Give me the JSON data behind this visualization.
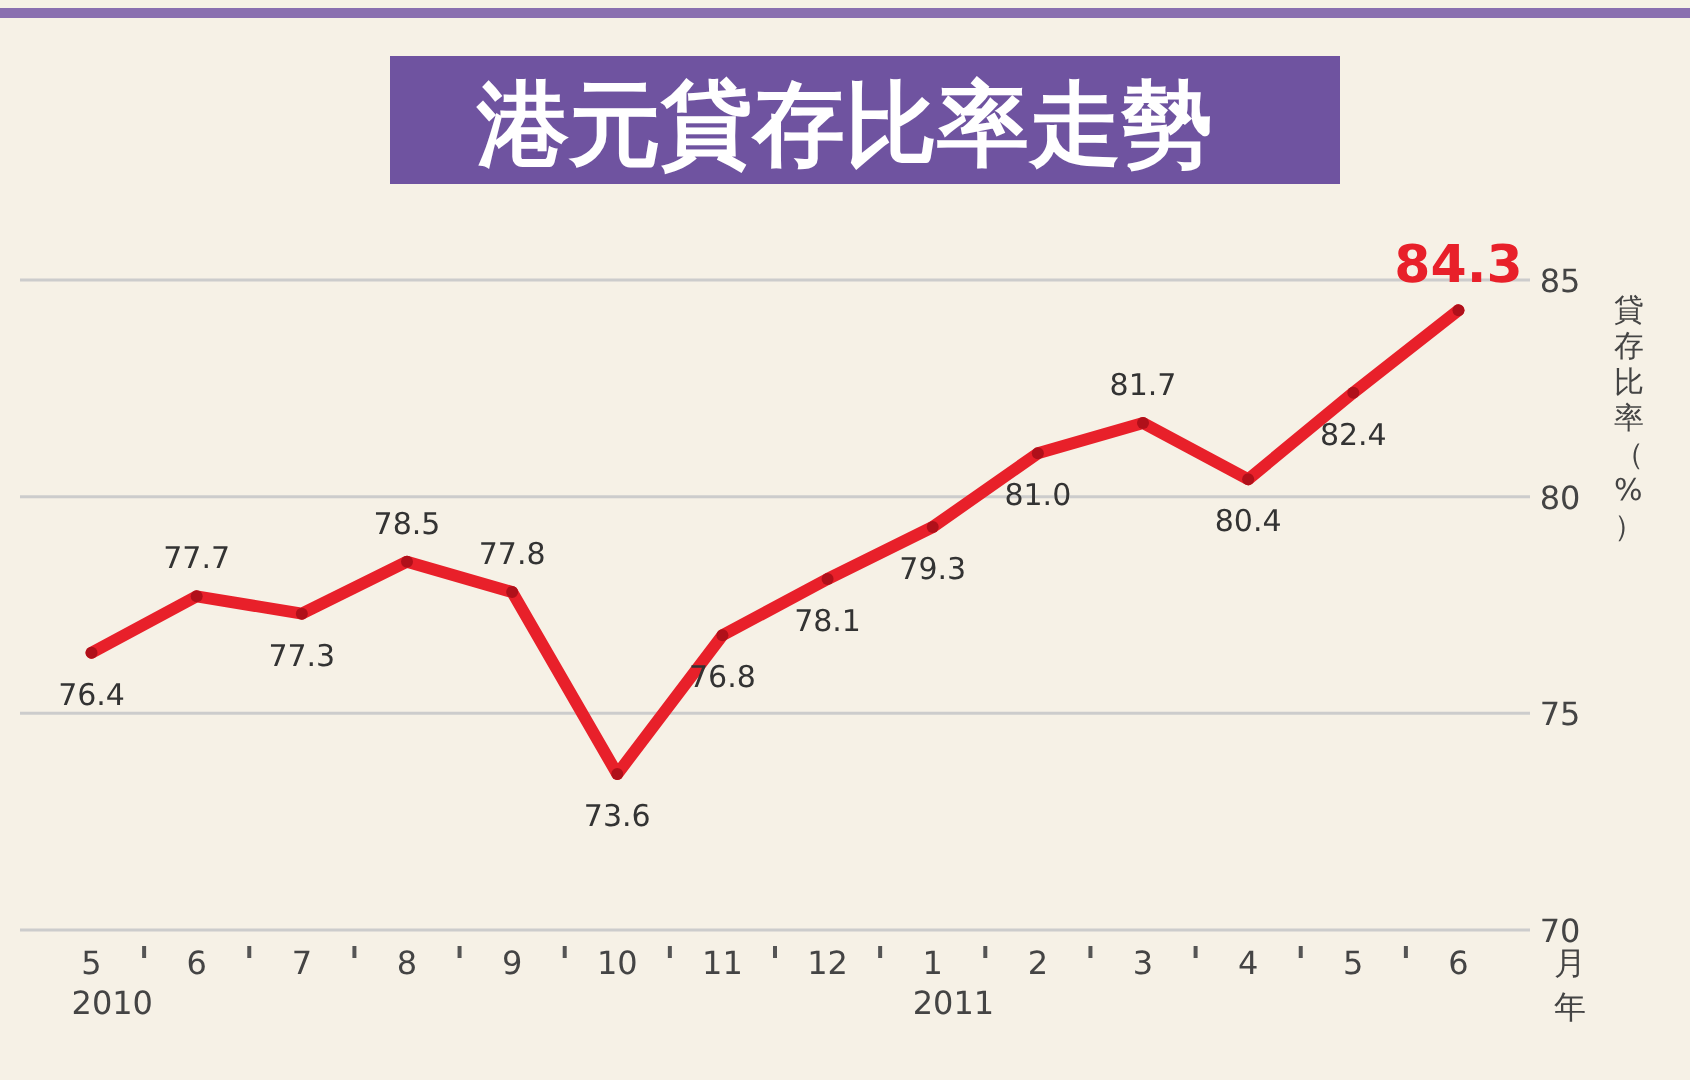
{
  "chart_data": {
    "type": "line",
    "title": "港元貸存比率走勢",
    "ylabel": "貸存比率（%）",
    "xlabel": "月",
    "categories": [
      "5",
      "6",
      "7",
      "8",
      "9",
      "10",
      "11",
      "12",
      "1",
      "2",
      "3",
      "4",
      "5",
      "6"
    ],
    "series": [
      {
        "color": "#e8202a",
        "values": [
          76.4,
          77.7,
          77.3,
          78.5,
          77.8,
          73.6,
          76.8,
          78.1,
          79.3,
          81.0,
          81.7,
          80.4,
          82.4,
          84.3
        ]
      }
    ],
    "value_labels": [
      "76.4",
      "77.7",
      "77.3",
      "78.5",
      "77.8",
      "73.6",
      "76.8",
      "78.1",
      "79.3",
      "81.0",
      "81.7",
      "80.4",
      "82.4",
      "84.3"
    ],
    "ylim": [
      70,
      85
    ],
    "yticks": [
      70,
      75,
      80,
      85
    ],
    "grid": "y",
    "marker": "circle",
    "annotations": [
      "2010",
      "2011",
      "年"
    ]
  }
}
